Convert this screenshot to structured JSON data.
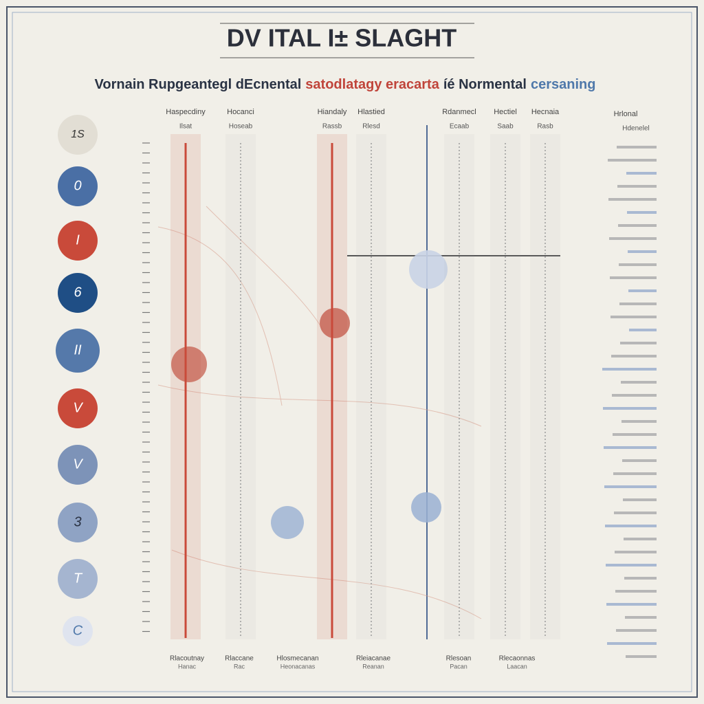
{
  "header": {
    "title": "DV ITAL I± SLAGHT",
    "subtitle": [
      {
        "text": "Vornain Rupgeantegl dEcnental",
        "color": "#2a3344"
      },
      {
        "text": "satodlatagy eracarta",
        "color": "#c0443a"
      },
      {
        "text": "íé Normental",
        "color": "#2a3344"
      },
      {
        "text": "cersaning",
        "color": "#4f78aa"
      }
    ]
  },
  "markers": [
    {
      "label": "1S",
      "color": "#e2ded4",
      "text_color": "#333"
    },
    {
      "label": "0",
      "color": "#4a6fa5",
      "text_color": "#fff"
    },
    {
      "label": "I",
      "color": "#c94a3a",
      "text_color": "#fff"
    },
    {
      "label": "6",
      "color": "#1f4e85",
      "text_color": "#fff"
    },
    {
      "label": "II",
      "color": "#5579aa",
      "text_color": "#fff"
    },
    {
      "label": "V",
      "color": "#c94a3a",
      "text_color": "#fff"
    },
    {
      "label": "V",
      "color": "#7d93b8",
      "text_color": "#fff"
    },
    {
      "label": "3",
      "color": "#8fa3c4",
      "text_color": "#2a3344"
    },
    {
      "label": "T",
      "color": "#a5b5d0",
      "text_color": "#fff"
    },
    {
      "label": "C",
      "color": "#dfe4ef",
      "text_color": "#4f78aa"
    }
  ],
  "columns": [
    {
      "heading": "Haspecdiny",
      "sub": "Ilsat",
      "color": "#c94a3a"
    },
    {
      "heading": "Hocanci",
      "sub": "Hoseab",
      "color": "#9a9a9a"
    },
    {
      "heading": "Hiandaly",
      "sub": "Rassb",
      "color": "#c94a3a"
    },
    {
      "heading": "Hlastied",
      "sub": "Rlesd",
      "color": "#9a9a9a"
    },
    {
      "heading": "Rdanmecl",
      "sub": "Ecaab",
      "color": "#9a9a9a"
    },
    {
      "heading": "Hectiel",
      "sub": "Saab",
      "color": "#9a9a9a"
    },
    {
      "heading": "Hecnaia",
      "sub": "Rasb",
      "color": "#9a9a9a"
    }
  ],
  "side_heading": "Hrlonal",
  "side_sub": "Hdenelel",
  "footer": [
    {
      "line1": "Rlacoutnay",
      "line2": "Hanac"
    },
    {
      "line1": "Rlaccane",
      "line2": "Rac"
    },
    {
      "line1": "Hlosmecanan",
      "line2": "Heonacanas"
    },
    {
      "line1": "Rleiacanae",
      "line2": "Reanan"
    },
    {
      "line1": "Rlesoan",
      "line2": "Pacan"
    },
    {
      "line1": "Rlecaonnas",
      "line2": "Laacan"
    }
  ]
}
